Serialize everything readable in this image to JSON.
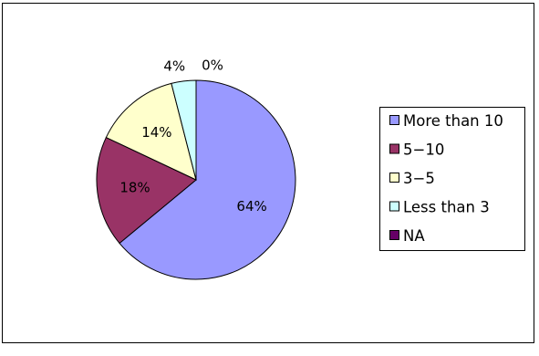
{
  "chart_data": {
    "type": "pie",
    "title": "",
    "categories": [
      "More than 10",
      "5-10",
      "3-5",
      "Less than 3",
      "NA"
    ],
    "values": [
      64,
      18,
      14,
      4,
      0
    ],
    "value_labels": [
      "64%",
      "18%",
      "14%",
      "4%",
      "0%"
    ],
    "colors": [
      "#9999ff",
      "#993366",
      "#ffffcc",
      "#ccffff",
      "#660066"
    ],
    "legend": {
      "position": "right",
      "entries": [
        "More than 10",
        "5−10",
        "3−5",
        "Less than 3",
        "NA"
      ]
    }
  }
}
